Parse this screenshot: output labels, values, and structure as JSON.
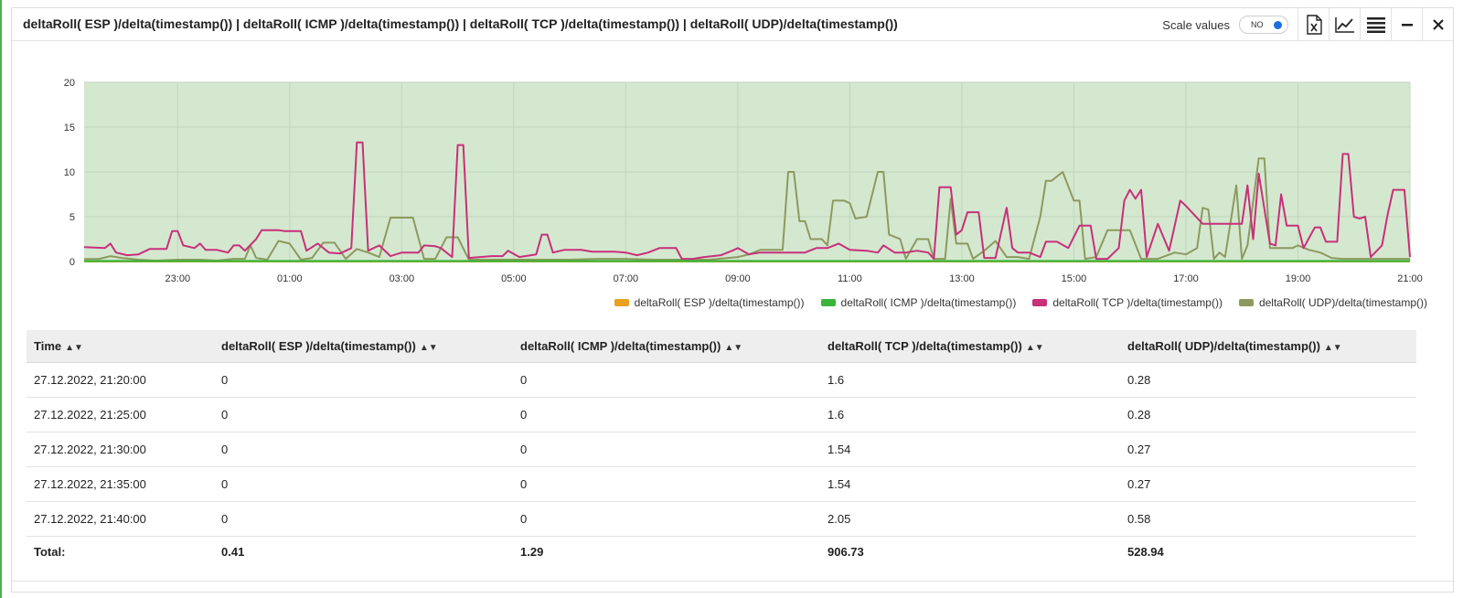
{
  "panel": {
    "title": "deltaRoll( ESP )/delta(timestamp()) | deltaRoll( ICMP )/delta(timestamp()) | deltaRoll( TCP )/delta(timestamp()) | deltaRoll( UDP)/delta(timestamp())"
  },
  "toolbar": {
    "scale_label": "Scale values",
    "toggle_text": "NO",
    "icons": [
      "excel-export-icon",
      "line-chart-icon",
      "menu-icon",
      "minimize-icon",
      "close-icon"
    ]
  },
  "chart_data": {
    "type": "line",
    "ylim": [
      0,
      20
    ],
    "yticks": [
      "0",
      "5",
      "10",
      "15",
      "20"
    ],
    "xticks": [
      "23:00",
      "01:00",
      "03:00",
      "05:00",
      "07:00",
      "09:00",
      "11:00",
      "13:00",
      "15:00",
      "17:00",
      "19:00",
      "21:00"
    ],
    "xticks_hours": [
      23,
      25,
      27,
      29,
      31,
      33,
      35,
      37,
      39,
      41,
      43,
      45
    ],
    "xlim_hours": [
      21.33,
      45.0
    ],
    "background": "#d4e8d0",
    "series": [
      {
        "name": "deltaRoll( ESP )/delta(timestamp())",
        "color": "#e8a020",
        "points": [
          [
            21.33,
            0
          ],
          [
            45,
            0
          ]
        ]
      },
      {
        "name": "deltaRoll( ICMP )/delta(timestamp())",
        "color": "#3ab53a",
        "points": [
          [
            21.33,
            0.05
          ],
          [
            45,
            0.05
          ]
        ]
      },
      {
        "name": "deltaRoll( TCP )/delta(timestamp())",
        "color": "#c8307a",
        "points": [
          [
            21.33,
            1.6
          ],
          [
            21.7,
            1.5
          ],
          [
            21.8,
            2.0
          ],
          [
            21.9,
            1.0
          ],
          [
            22.1,
            0.7
          ],
          [
            22.3,
            0.8
          ],
          [
            22.5,
            1.4
          ],
          [
            22.8,
            1.4
          ],
          [
            22.9,
            3.4
          ],
          [
            23.0,
            3.4
          ],
          [
            23.1,
            1.8
          ],
          [
            23.3,
            1.5
          ],
          [
            23.4,
            2.0
          ],
          [
            23.5,
            1.3
          ],
          [
            23.7,
            1.3
          ],
          [
            23.9,
            1.0
          ],
          [
            24.0,
            1.8
          ],
          [
            24.1,
            1.8
          ],
          [
            24.2,
            1.2
          ],
          [
            24.4,
            2.5
          ],
          [
            24.5,
            3.5
          ],
          [
            24.8,
            3.5
          ],
          [
            24.9,
            3.4
          ],
          [
            25.2,
            3.4
          ],
          [
            25.3,
            1.2
          ],
          [
            25.5,
            2.0
          ],
          [
            25.7,
            1.0
          ],
          [
            25.9,
            0.9
          ],
          [
            26.1,
            1.5
          ],
          [
            26.2,
            13.3
          ],
          [
            26.3,
            13.3
          ],
          [
            26.4,
            1.2
          ],
          [
            26.6,
            1.8
          ],
          [
            26.8,
            0.6
          ],
          [
            27.0,
            1.0
          ],
          [
            27.3,
            1.0
          ],
          [
            27.4,
            1.8
          ],
          [
            27.6,
            1.7
          ],
          [
            27.7,
            1.5
          ],
          [
            27.9,
            0.5
          ],
          [
            28.0,
            13.0
          ],
          [
            28.1,
            13.0
          ],
          [
            28.2,
            0.4
          ],
          [
            28.4,
            0.5
          ],
          [
            28.6,
            0.6
          ],
          [
            28.8,
            0.6
          ],
          [
            28.9,
            1.2
          ],
          [
            29.1,
            0.5
          ],
          [
            29.4,
            0.8
          ],
          [
            29.5,
            3.0
          ],
          [
            29.6,
            3.0
          ],
          [
            29.7,
            1.0
          ],
          [
            29.9,
            1.3
          ],
          [
            30.2,
            1.3
          ],
          [
            30.4,
            1.1
          ],
          [
            30.8,
            1.1
          ],
          [
            31.0,
            1.0
          ],
          [
            31.2,
            0.7
          ],
          [
            31.4,
            1.0
          ],
          [
            31.6,
            1.5
          ],
          [
            31.9,
            1.5
          ],
          [
            32.0,
            0.3
          ],
          [
            32.2,
            0.3
          ],
          [
            32.4,
            0.5
          ],
          [
            32.7,
            0.7
          ],
          [
            32.9,
            1.2
          ],
          [
            33.0,
            1.5
          ],
          [
            33.2,
            0.8
          ],
          [
            33.4,
            1.0
          ],
          [
            33.7,
            1.0
          ],
          [
            33.9,
            1.0
          ],
          [
            34.2,
            1.0
          ],
          [
            34.4,
            1.5
          ],
          [
            34.6,
            1.5
          ],
          [
            34.8,
            2.0
          ],
          [
            35.0,
            1.3
          ],
          [
            35.3,
            1.2
          ],
          [
            35.5,
            1.0
          ],
          [
            35.6,
            1.8
          ],
          [
            35.8,
            1.0
          ],
          [
            36.0,
            1.0
          ],
          [
            36.2,
            1.2
          ],
          [
            36.4,
            1.0
          ],
          [
            36.5,
            0.3
          ],
          [
            36.6,
            8.3
          ],
          [
            36.8,
            8.3
          ],
          [
            36.9,
            3.0
          ],
          [
            37.0,
            3.5
          ],
          [
            37.1,
            5.5
          ],
          [
            37.3,
            5.5
          ],
          [
            37.4,
            0.4
          ],
          [
            37.6,
            0.4
          ],
          [
            37.8,
            6.0
          ],
          [
            37.9,
            1.5
          ],
          [
            38.0,
            1.0
          ],
          [
            38.2,
            1.0
          ],
          [
            38.4,
            0.5
          ],
          [
            38.5,
            2.2
          ],
          [
            38.7,
            2.2
          ],
          [
            38.9,
            1.5
          ],
          [
            39.1,
            4.0
          ],
          [
            39.3,
            4.0
          ],
          [
            39.4,
            0.3
          ],
          [
            39.6,
            0.3
          ],
          [
            39.8,
            1.5
          ],
          [
            39.9,
            6.8
          ],
          [
            40.0,
            8.0
          ],
          [
            40.1,
            7.0
          ],
          [
            40.2,
            8.0
          ],
          [
            40.3,
            0.5
          ],
          [
            40.5,
            4.2
          ],
          [
            40.7,
            1.2
          ],
          [
            40.9,
            6.8
          ],
          [
            41.0,
            6.2
          ],
          [
            41.3,
            4.2
          ],
          [
            41.8,
            4.2
          ],
          [
            42.0,
            4.2
          ],
          [
            42.1,
            8.5
          ],
          [
            42.2,
            2.5
          ],
          [
            42.3,
            9.8
          ],
          [
            42.5,
            2.0
          ],
          [
            42.6,
            1.8
          ],
          [
            42.7,
            7.5
          ],
          [
            42.8,
            4.0
          ],
          [
            43.0,
            4.0
          ],
          [
            43.1,
            1.5
          ],
          [
            43.3,
            3.8
          ],
          [
            43.4,
            3.8
          ],
          [
            43.5,
            2.2
          ],
          [
            43.7,
            2.2
          ],
          [
            43.8,
            12.0
          ],
          [
            43.9,
            12.0
          ],
          [
            44.0,
            5.0
          ],
          [
            44.1,
            4.8
          ],
          [
            44.2,
            5.0
          ],
          [
            44.3,
            0.5
          ],
          [
            44.5,
            1.8
          ],
          [
            44.6,
            5.2
          ],
          [
            44.7,
            8.0
          ],
          [
            44.9,
            8.0
          ],
          [
            45.0,
            0.5
          ]
        ]
      },
      {
        "name": "deltaRoll( UDP)/delta(timestamp())",
        "color": "#8c9a5e",
        "points": [
          [
            21.33,
            0.28
          ],
          [
            21.6,
            0.3
          ],
          [
            21.8,
            0.6
          ],
          [
            22.0,
            0.4
          ],
          [
            22.3,
            0.2
          ],
          [
            22.6,
            0.1
          ],
          [
            23.0,
            0.2
          ],
          [
            23.4,
            0.2
          ],
          [
            23.7,
            0.1
          ],
          [
            24.0,
            0.3
          ],
          [
            24.2,
            0.3
          ],
          [
            24.3,
            1.8
          ],
          [
            24.4,
            0.4
          ],
          [
            24.6,
            0.2
          ],
          [
            24.8,
            2.3
          ],
          [
            25.0,
            2.0
          ],
          [
            25.2,
            0.2
          ],
          [
            25.4,
            0.4
          ],
          [
            25.6,
            2.1
          ],
          [
            25.8,
            2.1
          ],
          [
            26.0,
            0.3
          ],
          [
            26.2,
            1.4
          ],
          [
            26.4,
            1.0
          ],
          [
            26.6,
            0.5
          ],
          [
            26.8,
            4.9
          ],
          [
            27.0,
            4.9
          ],
          [
            27.2,
            4.9
          ],
          [
            27.4,
            0.3
          ],
          [
            27.6,
            0.3
          ],
          [
            27.8,
            2.7
          ],
          [
            28.0,
            2.7
          ],
          [
            28.2,
            0.2
          ],
          [
            28.6,
            0.2
          ],
          [
            29.0,
            0.2
          ],
          [
            29.5,
            0.2
          ],
          [
            30.0,
            0.2
          ],
          [
            30.5,
            0.3
          ],
          [
            31.0,
            0.3
          ],
          [
            31.5,
            0.2
          ],
          [
            32.0,
            0.2
          ],
          [
            32.5,
            0.2
          ],
          [
            33.0,
            0.5
          ],
          [
            33.2,
            0.8
          ],
          [
            33.4,
            1.3
          ],
          [
            33.6,
            1.3
          ],
          [
            33.8,
            1.3
          ],
          [
            33.9,
            10.0
          ],
          [
            34.0,
            10.0
          ],
          [
            34.1,
            4.5
          ],
          [
            34.2,
            4.5
          ],
          [
            34.3,
            2.5
          ],
          [
            34.5,
            2.5
          ],
          [
            34.6,
            1.8
          ],
          [
            34.7,
            6.8
          ],
          [
            34.9,
            6.8
          ],
          [
            35.0,
            6.5
          ],
          [
            35.1,
            4.8
          ],
          [
            35.3,
            5.0
          ],
          [
            35.5,
            10.0
          ],
          [
            35.6,
            10.0
          ],
          [
            35.7,
            3.0
          ],
          [
            35.9,
            2.5
          ],
          [
            36.0,
            0.3
          ],
          [
            36.2,
            2.5
          ],
          [
            36.4,
            2.5
          ],
          [
            36.5,
            0.3
          ],
          [
            36.7,
            0.3
          ],
          [
            36.8,
            7.0
          ],
          [
            36.9,
            2.0
          ],
          [
            37.1,
            2.0
          ],
          [
            37.2,
            0.3
          ],
          [
            37.4,
            1.2
          ],
          [
            37.6,
            2.3
          ],
          [
            37.8,
            0.5
          ],
          [
            38.0,
            0.5
          ],
          [
            38.2,
            0.3
          ],
          [
            38.4,
            5.0
          ],
          [
            38.5,
            9.0
          ],
          [
            38.6,
            9.0
          ],
          [
            38.8,
            10.0
          ],
          [
            39.0,
            6.8
          ],
          [
            39.1,
            6.8
          ],
          [
            39.2,
            0.3
          ],
          [
            39.4,
            0.5
          ],
          [
            39.6,
            3.5
          ],
          [
            39.8,
            3.5
          ],
          [
            40.0,
            3.5
          ],
          [
            40.2,
            0.3
          ],
          [
            40.5,
            0.3
          ],
          [
            40.8,
            1.0
          ],
          [
            41.0,
            0.8
          ],
          [
            41.2,
            1.5
          ],
          [
            41.3,
            6.0
          ],
          [
            41.4,
            5.8
          ],
          [
            41.5,
            0.3
          ],
          [
            41.6,
            1.0
          ],
          [
            41.7,
            0.5
          ],
          [
            41.9,
            8.5
          ],
          [
            42.0,
            0.3
          ],
          [
            42.1,
            1.8
          ],
          [
            42.3,
            11.5
          ],
          [
            42.4,
            11.5
          ],
          [
            42.5,
            1.5
          ],
          [
            42.7,
            1.5
          ],
          [
            42.9,
            1.5
          ],
          [
            43.0,
            1.8
          ],
          [
            43.2,
            1.3
          ],
          [
            43.4,
            1.0
          ],
          [
            43.6,
            0.4
          ],
          [
            43.8,
            0.3
          ],
          [
            44.0,
            0.3
          ],
          [
            44.2,
            0.3
          ],
          [
            44.5,
            0.3
          ],
          [
            45.0,
            0.3
          ]
        ]
      }
    ],
    "legend": [
      "deltaRoll( ESP )/delta(timestamp())",
      "deltaRoll( ICMP )/delta(timestamp())",
      "deltaRoll( TCP )/delta(timestamp())",
      "deltaRoll( UDP)/delta(timestamp())"
    ],
    "legend_position": "bottom-right",
    "grid": true
  },
  "table": {
    "headers": [
      "Time",
      "deltaRoll( ESP )/delta(timestamp())",
      "deltaRoll( ICMP )/delta(timestamp())",
      "deltaRoll( TCP )/delta(timestamp())",
      "deltaRoll( UDP)/delta(timestamp())"
    ],
    "rows": [
      [
        "27.12.2022, 21:20:00",
        "0",
        "0",
        "1.6",
        "0.28"
      ],
      [
        "27.12.2022, 21:25:00",
        "0",
        "0",
        "1.6",
        "0.28"
      ],
      [
        "27.12.2022, 21:30:00",
        "0",
        "0",
        "1.54",
        "0.27"
      ],
      [
        "27.12.2022, 21:35:00",
        "0",
        "0",
        "1.54",
        "0.27"
      ],
      [
        "27.12.2022, 21:40:00",
        "0",
        "0",
        "2.05",
        "0.58"
      ]
    ],
    "total": [
      "Total:",
      "0.41",
      "1.29",
      "906.73",
      "528.94"
    ]
  }
}
